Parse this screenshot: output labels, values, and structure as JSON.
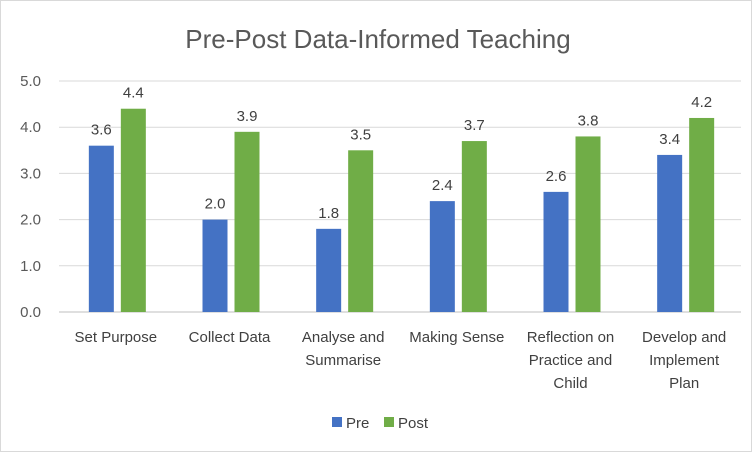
{
  "chart_data": {
    "type": "bar",
    "title": "Pre-Post Data-Informed Teaching",
    "categories": [
      [
        "Set Purpose"
      ],
      [
        "Collect Data"
      ],
      [
        "Analyse and",
        "Summarise"
      ],
      [
        "Making Sense"
      ],
      [
        "Reflection on",
        "Practice and",
        "Child"
      ],
      [
        "Develop and",
        "Implement",
        "Plan"
      ]
    ],
    "series": [
      {
        "name": "Pre",
        "color": "#4472c4",
        "values": [
          3.6,
          2.0,
          1.8,
          2.4,
          2.6,
          3.4
        ],
        "labels": [
          "3.6",
          "2.0",
          "1.8",
          "2.4",
          "2.6",
          "3.4"
        ]
      },
      {
        "name": "Post",
        "color": "#70ad47",
        "values": [
          4.4,
          3.9,
          3.5,
          3.7,
          3.8,
          4.2
        ],
        "labels": [
          "4.4",
          "3.9",
          "3.5",
          "3.7",
          "3.8",
          "4.2"
        ]
      }
    ],
    "ylim": [
      0,
      5
    ],
    "yticks": [
      "0.0",
      "1.0",
      "2.0",
      "3.0",
      "4.0",
      "5.0"
    ],
    "grid": true,
    "legend_position": "bottom"
  }
}
